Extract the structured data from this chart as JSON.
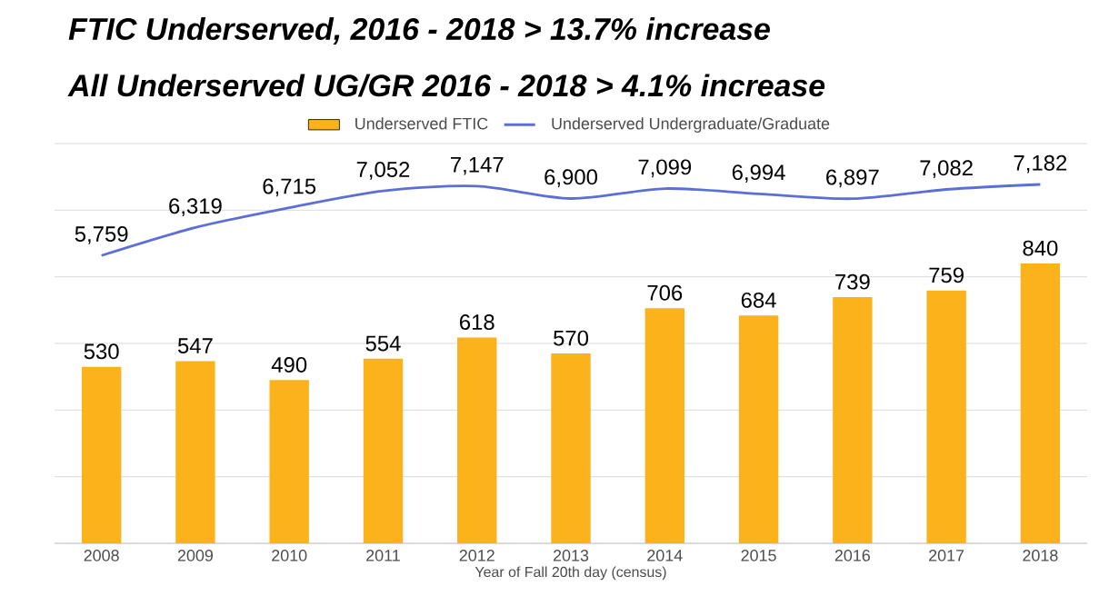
{
  "chart_data": {
    "type": "bar",
    "title": "FTIC Underserved, 2016 - 2018 > 13.7% increase",
    "subtitle": "All Underserved UG/GR 2016 - 2018 > 4.1% increase",
    "xlabel": "Year of Fall 20th day (census)",
    "categories": [
      "2008",
      "2009",
      "2010",
      "2011",
      "2012",
      "2013",
      "2014",
      "2015",
      "2016",
      "2017",
      "2018"
    ],
    "series": [
      {
        "name": "Underserved FTIC",
        "color": "#fbb21b",
        "values": [
          530,
          547,
          490,
          554,
          618,
          570,
          706,
          684,
          739,
          759,
          840
        ],
        "value_labels": [
          "530",
          "547",
          "490",
          "554",
          "618",
          "570",
          "706",
          "684",
          "739",
          "759",
          "840"
        ]
      },
      {
        "name": "Underserved Undergraduate/Graduate",
        "type": "line",
        "axis": "y2",
        "color": "#5b6fd6",
        "values": [
          5759,
          6319,
          6715,
          7052,
          7147,
          6900,
          7099,
          6994,
          6897,
          7082,
          7182
        ],
        "value_labels": [
          "5,759",
          "6,319",
          "6,715",
          "7,052",
          "7,147",
          "6,900",
          "7,099",
          "6,994",
          "6,897",
          "7,082",
          "7,182"
        ]
      }
    ],
    "ylim": [
      0,
      1200
    ],
    "yticks": [
      {
        "value": 0,
        "label": null
      },
      {
        "value": 200,
        "label": null
      },
      {
        "value": 400,
        "label": null
      },
      {
        "value": 600,
        "label": null
      },
      {
        "value": 800,
        "label": null
      },
      {
        "value": 1000,
        "label": null
      },
      {
        "value": 1200,
        "label": null
      }
    ],
    "y2lim": [
      0,
      8000
    ],
    "grid": "y",
    "legend": "top",
    "tick_labels": "x",
    "marker": "none"
  }
}
